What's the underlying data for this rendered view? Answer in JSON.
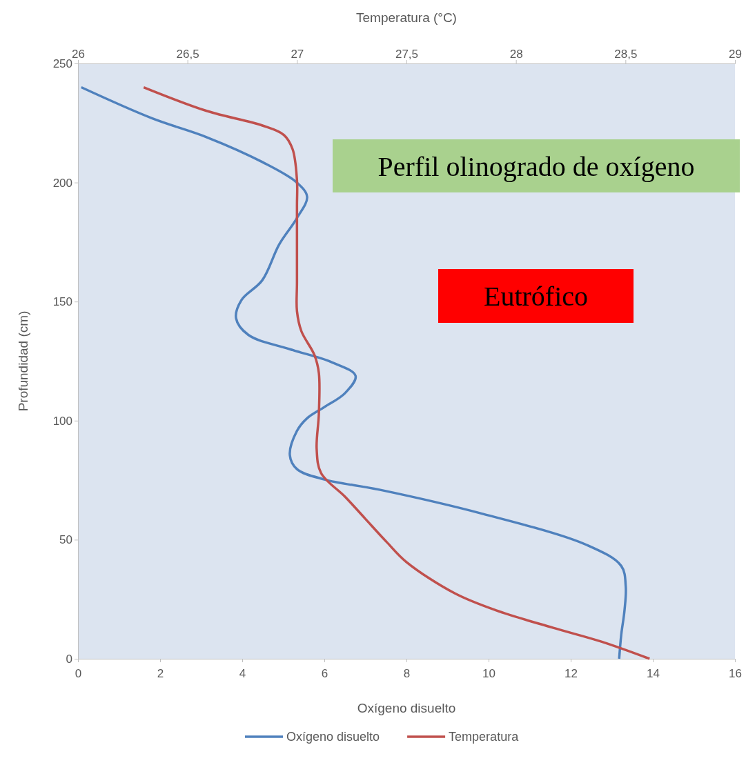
{
  "chart_data": {
    "type": "line",
    "xlabel": "Oxígeno disuelto",
    "x2label": "Temperatura (°C)",
    "ylabel": "Profundidad (cm)",
    "xlim": [
      0,
      16
    ],
    "xticks": [
      0,
      2,
      4,
      6,
      8,
      10,
      12,
      14,
      16
    ],
    "x2lim": [
      26,
      29
    ],
    "x2ticks": [
      26,
      {
        "value": 26.5,
        "label": "26,5"
      },
      27,
      {
        "value": 27.5,
        "label": "27,5"
      },
      28,
      {
        "value": 28.5,
        "label": "28,5"
      },
      29
    ],
    "ylim": [
      0,
      250
    ],
    "yticks": [
      0,
      50,
      100,
      150,
      200,
      250
    ],
    "grid": false,
    "legend": "bottom",
    "marker": "none",
    "line_style": "solid",
    "annotations": [
      "Perfil olinogrado de oxígeno",
      "Eutrófico"
    ],
    "series": [
      {
        "name": "Oxígeno disuelto",
        "color": "#4f81bd",
        "x": [
          0.08,
          1.8,
          3.14,
          4.49,
          5.33,
          5.58,
          5.33,
          4.9,
          4.49,
          3.98,
          3.85,
          4.15,
          5.16,
          6.17,
          6.76,
          6.5,
          6.0,
          5.58,
          5.33,
          5.16,
          5.33,
          6.0,
          7.34,
          9.87,
          12.39,
          13.23,
          13.34,
          13.31,
          13.23,
          13.18
        ],
        "values": [
          240,
          227,
          219,
          208.6,
          200,
          194,
          185,
          174,
          159,
          150.6,
          143,
          136,
          130,
          124.6,
          118.8,
          111.5,
          105.7,
          101,
          95.6,
          85.5,
          79.7,
          75.3,
          71,
          60.8,
          47.8,
          39,
          30.4,
          20.3,
          10,
          0
        ]
      },
      {
        "name": "Temperatura",
        "color": "#c0504d",
        "axis": "x2",
        "x": [
          26.3,
          26.59,
          26.84,
          26.94,
          26.98,
          27.0,
          27.0,
          27.0,
          27.0,
          27.02,
          27.08,
          27.1,
          27.1,
          27.09,
          27.11,
          27.22,
          27.31,
          27.41,
          27.5,
          27.72,
          27.91,
          28.17,
          28.39,
          28.61
        ],
        "values": [
          240,
          230,
          224,
          220,
          214,
          201,
          190,
          158,
          146,
          137.6,
          127.5,
          120,
          103,
          88,
          78,
          68,
          59,
          49,
          40.6,
          27.5,
          20.3,
          13,
          7.2,
          0
        ]
      }
    ]
  }
}
